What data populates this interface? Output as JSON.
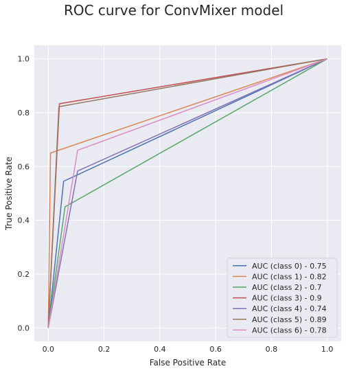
{
  "chart_data": {
    "type": "line",
    "title": "ROC curve for ConvMixer model",
    "xlabel": "False Positive Rate",
    "ylabel": "True Positive Rate",
    "xlim": [
      -0.05,
      1.05
    ],
    "ylim": [
      -0.05,
      1.05
    ],
    "x_ticks": [
      "0.0",
      "0.2",
      "0.4",
      "0.6",
      "0.8",
      "1.0"
    ],
    "y_ticks": [
      "0.0",
      "0.2",
      "0.4",
      "0.6",
      "0.8",
      "1.0"
    ],
    "grid": true,
    "legend_position": "lower-right",
    "series": [
      {
        "name": "AUC (class 0) - 0.75",
        "color": "#4c72b0",
        "x": [
          0.0,
          0.055,
          1.0
        ],
        "y": [
          0.0,
          0.545,
          1.0
        ]
      },
      {
        "name": "AUC (class 1) - 0.82",
        "color": "#dd8452",
        "x": [
          0.0,
          0.008,
          1.0
        ],
        "y": [
          0.0,
          0.65,
          1.0
        ]
      },
      {
        "name": "AUC (class 2) - 0.7",
        "color": "#55a868",
        "x": [
          0.0,
          0.06,
          1.0
        ],
        "y": [
          0.0,
          0.45,
          1.0
        ]
      },
      {
        "name": "AUC (class 3) - 0.9",
        "color": "#c44e52",
        "x": [
          0.0,
          0.04,
          1.0
        ],
        "y": [
          0.0,
          0.833,
          1.0
        ]
      },
      {
        "name": "AUC (class 4) - 0.74",
        "color": "#8172b3",
        "x": [
          0.0,
          0.105,
          1.0
        ],
        "y": [
          0.0,
          0.583,
          1.0
        ]
      },
      {
        "name": "AUC (class 5) - 0.89",
        "color": "#937860",
        "x": [
          0.0,
          0.038,
          1.0
        ],
        "y": [
          0.0,
          0.822,
          1.0
        ]
      },
      {
        "name": "AUC (class 6) - 0.78",
        "color": "#da8bc3",
        "x": [
          0.0,
          0.105,
          1.0
        ],
        "y": [
          0.0,
          0.66,
          1.0
        ]
      }
    ]
  }
}
